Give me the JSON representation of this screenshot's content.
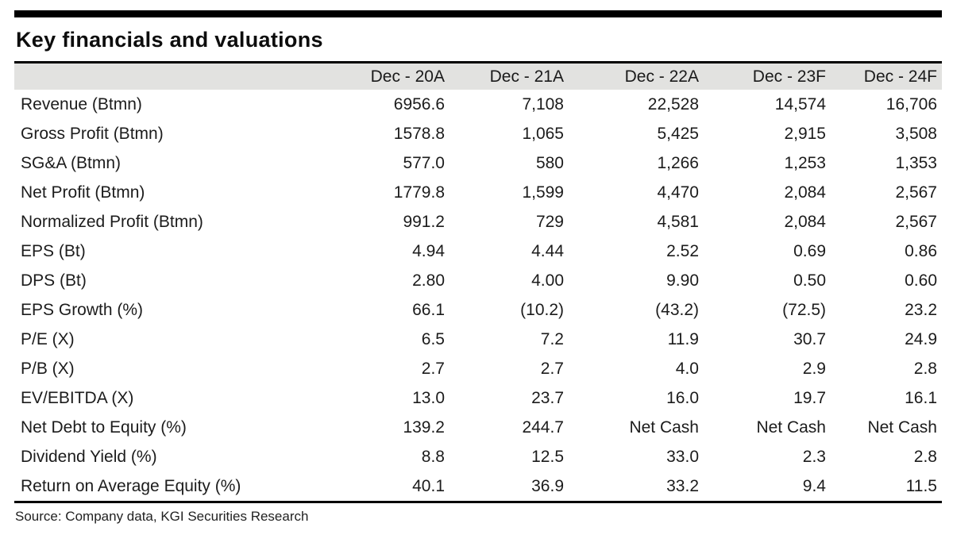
{
  "title": "Key financials and valuations",
  "source": "Source: Company data, KGI Securities Research",
  "colors": {
    "header_bg": "#e2e2e0",
    "rule": "#000000",
    "text": "#1c1c1c"
  },
  "table": {
    "columns": [
      "Dec - 20A",
      "Dec - 21A",
      "Dec - 22A",
      "Dec - 23F",
      "Dec - 24F"
    ],
    "rows": [
      {
        "label": "Revenue (Btmn)",
        "values": [
          "6956.6",
          "7,108",
          "22,528",
          "14,574",
          "16,706"
        ]
      },
      {
        "label": "Gross Profit (Btmn)",
        "values": [
          "1578.8",
          "1,065",
          "5,425",
          "2,915",
          "3,508"
        ]
      },
      {
        "label": "SG&A (Btmn)",
        "values": [
          "577.0",
          "580",
          "1,266",
          "1,253",
          "1,353"
        ]
      },
      {
        "label": "Net Profit (Btmn)",
        "values": [
          "1779.8",
          "1,599",
          "4,470",
          "2,084",
          "2,567"
        ]
      },
      {
        "label": "Normalized Profit (Btmn)",
        "values": [
          "991.2",
          "729",
          "4,581",
          "2,084",
          "2,567"
        ]
      },
      {
        "label": "EPS (Bt)",
        "values": [
          "4.94",
          "4.44",
          "2.52",
          "0.69",
          "0.86"
        ]
      },
      {
        "label": "DPS (Bt)",
        "values": [
          "2.80",
          "4.00",
          "9.90",
          "0.50",
          "0.60"
        ]
      },
      {
        "label": "EPS Growth (%)",
        "values": [
          "66.1",
          "(10.2)",
          "(43.2)",
          "(72.5)",
          "23.2"
        ]
      },
      {
        "label": "P/E (X)",
        "values": [
          "6.5",
          "7.2",
          "11.9",
          "30.7",
          "24.9"
        ]
      },
      {
        "label": "P/B (X)",
        "values": [
          "2.7",
          "2.7",
          "4.0",
          "2.9",
          "2.8"
        ]
      },
      {
        "label": "EV/EBITDA (X)",
        "values": [
          "13.0",
          "23.7",
          "16.0",
          "19.7",
          "16.1"
        ]
      },
      {
        "label": "Net Debt to Equity (%)",
        "values": [
          "139.2",
          "244.7",
          "Net Cash",
          "Net Cash",
          "Net Cash"
        ]
      },
      {
        "label": "Dividend Yield (%)",
        "values": [
          "8.8",
          "12.5",
          "33.0",
          "2.3",
          "2.8"
        ]
      },
      {
        "label": "Return on Average Equity (%)",
        "values": [
          "40.1",
          "36.9",
          "33.2",
          "9.4",
          "11.5"
        ]
      }
    ]
  }
}
